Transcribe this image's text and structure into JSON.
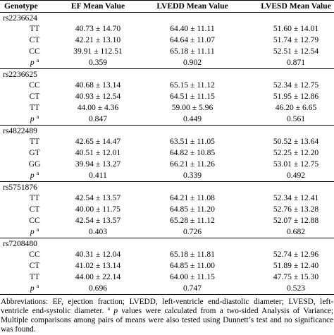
{
  "table": {
    "header": [
      "Genotype",
      "EF Mean Value",
      "LVEDD Mean Value",
      "LVESD Mean Value"
    ],
    "p_label": "p",
    "p_sup": "a",
    "groups": [
      {
        "snp": "rs2236624",
        "rows": [
          [
            "TT",
            "40.73 ± 14.70",
            "64.40 ± 11.11",
            "51.60 ± 14.01"
          ],
          [
            "CT",
            "42.21 ± 13.10",
            "64.64 ± 11.07",
            "51.74 ± 12.79"
          ],
          [
            "CC",
            "39.91 ± 112.51",
            "65.18 ± 11.11",
            "52.51 ± 12.54"
          ]
        ],
        "p": [
          "0.359",
          "0.902",
          "0.871"
        ]
      },
      {
        "snp": "rs2236625",
        "rows": [
          [
            "CC",
            "40.68 ± 13.14",
            "65.15 ± 11.12",
            "52.34 ± 12.75"
          ],
          [
            "CT",
            "40.93 ± 12.54",
            "64.51 ± 11.15",
            "51.95 ± 12.86"
          ],
          [
            "TT",
            "44.00 ± 4.36",
            "59.00 ± 5.96",
            "46.20 ± 6.65"
          ]
        ],
        "p": [
          "0.847",
          "0.449",
          "0.561"
        ]
      },
      {
        "snp": "rs4822489",
        "rows": [
          [
            "TT",
            "42.65 ± 14.47",
            "63.51 ± 11.05",
            "50.52 ± 13.64"
          ],
          [
            "GT",
            "40.51 ± 12.01",
            "64.82 ± 10.85",
            "52.25 ± 12.20"
          ],
          [
            "GG",
            "39.94 ± 13.27",
            "66.21 ± 11.26",
            "53.01 ± 12.75"
          ]
        ],
        "p": [
          "0.411",
          "0.339",
          "0.492"
        ]
      },
      {
        "snp": "rs5751876",
        "rows": [
          [
            "TT",
            "42.54 ± 13.57",
            "64.21 ± 11.08",
            "52.34 ± 12.41"
          ],
          [
            "CT",
            "40.00 ± 11.75",
            "64.85 ± 11.20",
            "52.76 ± 13.28"
          ],
          [
            "CC",
            "42.54 ± 13.57",
            "65.28 ± 11.12",
            "52.07 ± 12.88"
          ]
        ],
        "p": [
          "0.403",
          "0.726",
          "0.682"
        ]
      },
      {
        "snp": "rs7208480",
        "rows": [
          [
            "CC",
            "40.31 ± 12.04",
            "65.18 ± 11.81",
            "52.74 ± 12.96"
          ],
          [
            "CT",
            "41.02 ± 13.14",
            "64.85 ± 11.00",
            "51.89 ± 12.40"
          ],
          [
            "TT",
            "44.00 ± 22.14",
            "64.00 ± 11.15",
            "47.75 ± 15.30"
          ]
        ],
        "p": [
          "0.696",
          "0.747",
          "0.523"
        ]
      }
    ]
  },
  "footnote": {
    "text1": "Abbreviations: EF, ejection fraction; LVEDD, left-ventricle end-diastolic diameter; LVESD, left-ventricle end-systolic diameter.",
    "sup": "a",
    "italic": "p",
    "text2": "values were calculated from a two-sided Analysis of Variance; Multiple comparisons among pairs of means were also tested using Dunnett’s test and no significance was found."
  }
}
